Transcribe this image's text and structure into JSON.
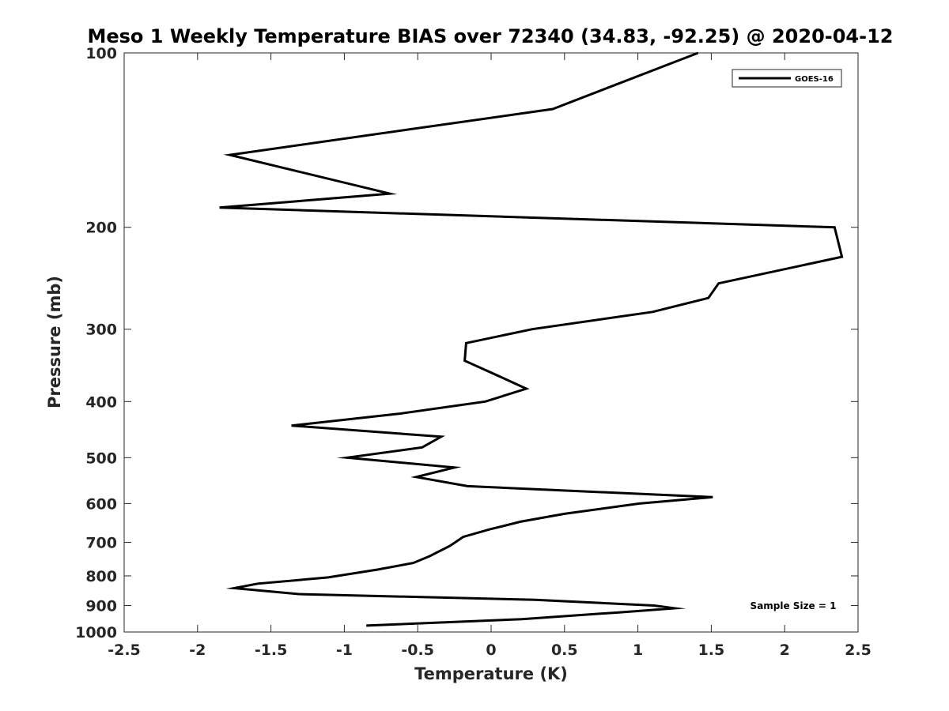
{
  "chart_data": {
    "type": "line",
    "title": "Meso 1 Weekly Temperature BIAS over 72340 (34.83, -92.25) @ 2020-04-12",
    "xlabel": "Temperature (K)",
    "ylabel": "Pressure (mb)",
    "xlim": [
      -2.5,
      2.5
    ],
    "ylim": [
      100,
      1000
    ],
    "y_scale": "log",
    "y_reversed": true,
    "x_ticks": [
      -2.5,
      -2,
      -1.5,
      -1,
      -0.5,
      0,
      0.5,
      1,
      1.5,
      2,
      2.5
    ],
    "x_tick_labels": [
      "-2.5",
      "-2",
      "-1.5",
      "-1",
      "-0.5",
      "0",
      "0.5",
      "1",
      "1.5",
      "2",
      "2.5"
    ],
    "y_ticks": [
      100,
      200,
      300,
      400,
      500,
      600,
      700,
      800,
      900,
      1000
    ],
    "y_tick_labels": [
      "100",
      "200",
      "300",
      "400",
      "500",
      "600",
      "700",
      "800",
      "900",
      "1000"
    ],
    "grid": false,
    "legend_position": "top-right",
    "annotation": "Sample Size = 1",
    "series": [
      {
        "name": "GOES-16",
        "color": "#000000",
        "points": [
          [
            1.41,
            100
          ],
          [
            0.42,
            125
          ],
          [
            -1.78,
            150
          ],
          [
            -0.69,
            175
          ],
          [
            -1.85,
            185
          ],
          [
            2.34,
            200
          ],
          [
            2.39,
            225
          ],
          [
            1.55,
            250
          ],
          [
            1.48,
            265
          ],
          [
            1.1,
            280
          ],
          [
            0.28,
            300
          ],
          [
            -0.17,
            317
          ],
          [
            -0.18,
            340
          ],
          [
            0.09,
            365
          ],
          [
            0.24,
            380
          ],
          [
            -0.04,
            400
          ],
          [
            -0.63,
            420
          ],
          [
            -1.36,
            440
          ],
          [
            -0.34,
            460
          ],
          [
            -0.47,
            480
          ],
          [
            -0.98,
            500
          ],
          [
            -0.25,
            520
          ],
          [
            -0.51,
            540
          ],
          [
            -0.16,
            560
          ],
          [
            1.51,
            585
          ],
          [
            1.01,
            600
          ],
          [
            0.5,
            625
          ],
          [
            0.2,
            645
          ],
          [
            -0.01,
            665
          ],
          [
            -0.19,
            685
          ],
          [
            -0.28,
            710
          ],
          [
            -0.42,
            740
          ],
          [
            -0.53,
            760
          ],
          [
            -0.77,
            780
          ],
          [
            -1.11,
            805
          ],
          [
            -1.59,
            825
          ],
          [
            -1.75,
            840
          ],
          [
            -1.31,
            860
          ],
          [
            0.3,
            880
          ],
          [
            1.11,
            900
          ],
          [
            1.25,
            910
          ],
          [
            0.87,
            925
          ],
          [
            0.21,
            950
          ],
          [
            -0.85,
            975
          ]
        ]
      }
    ]
  }
}
